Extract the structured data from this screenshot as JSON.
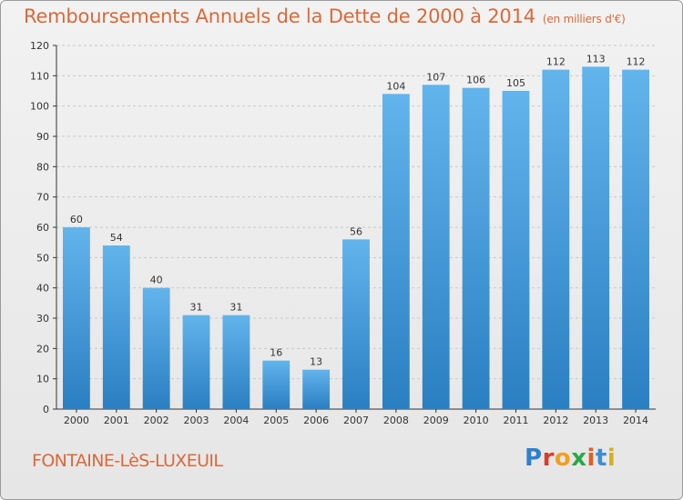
{
  "header": {
    "title": "Remboursements Annuels de la Dette de 2000 à 2014",
    "subtitle": "(en milliers d'€)"
  },
  "footer": {
    "location": "FONTAINE-LèS-LUXEUIL",
    "brand": "Proxiti",
    "brand_colors": [
      "#2f7fd0",
      "#d93c2a",
      "#f0a020",
      "#2aa84a",
      "#e06020",
      "#3b8ed8",
      "#d4b020"
    ]
  },
  "colors": {
    "bar_light": "#62b4ec",
    "bar_dark": "#2a7fc2",
    "grid": "#c8c8c8",
    "axis": "#333333",
    "text": "#333333"
  },
  "chart_data": {
    "type": "bar",
    "title": "Remboursements Annuels de la Dette de 2000 à 2014",
    "xlabel": "",
    "ylabel": "",
    "categories": [
      "2000",
      "2001",
      "2002",
      "2003",
      "2004",
      "2005",
      "2006",
      "2007",
      "2008",
      "2009",
      "2010",
      "2011",
      "2012",
      "2013",
      "2014"
    ],
    "values": [
      60,
      54,
      40,
      31,
      31,
      16,
      13,
      56,
      104,
      107,
      106,
      105,
      112,
      113,
      112
    ],
    "ylim": [
      0,
      120
    ],
    "yticks": [
      0,
      10,
      20,
      30,
      40,
      50,
      60,
      70,
      80,
      90,
      100,
      110,
      120
    ],
    "grid": true
  }
}
